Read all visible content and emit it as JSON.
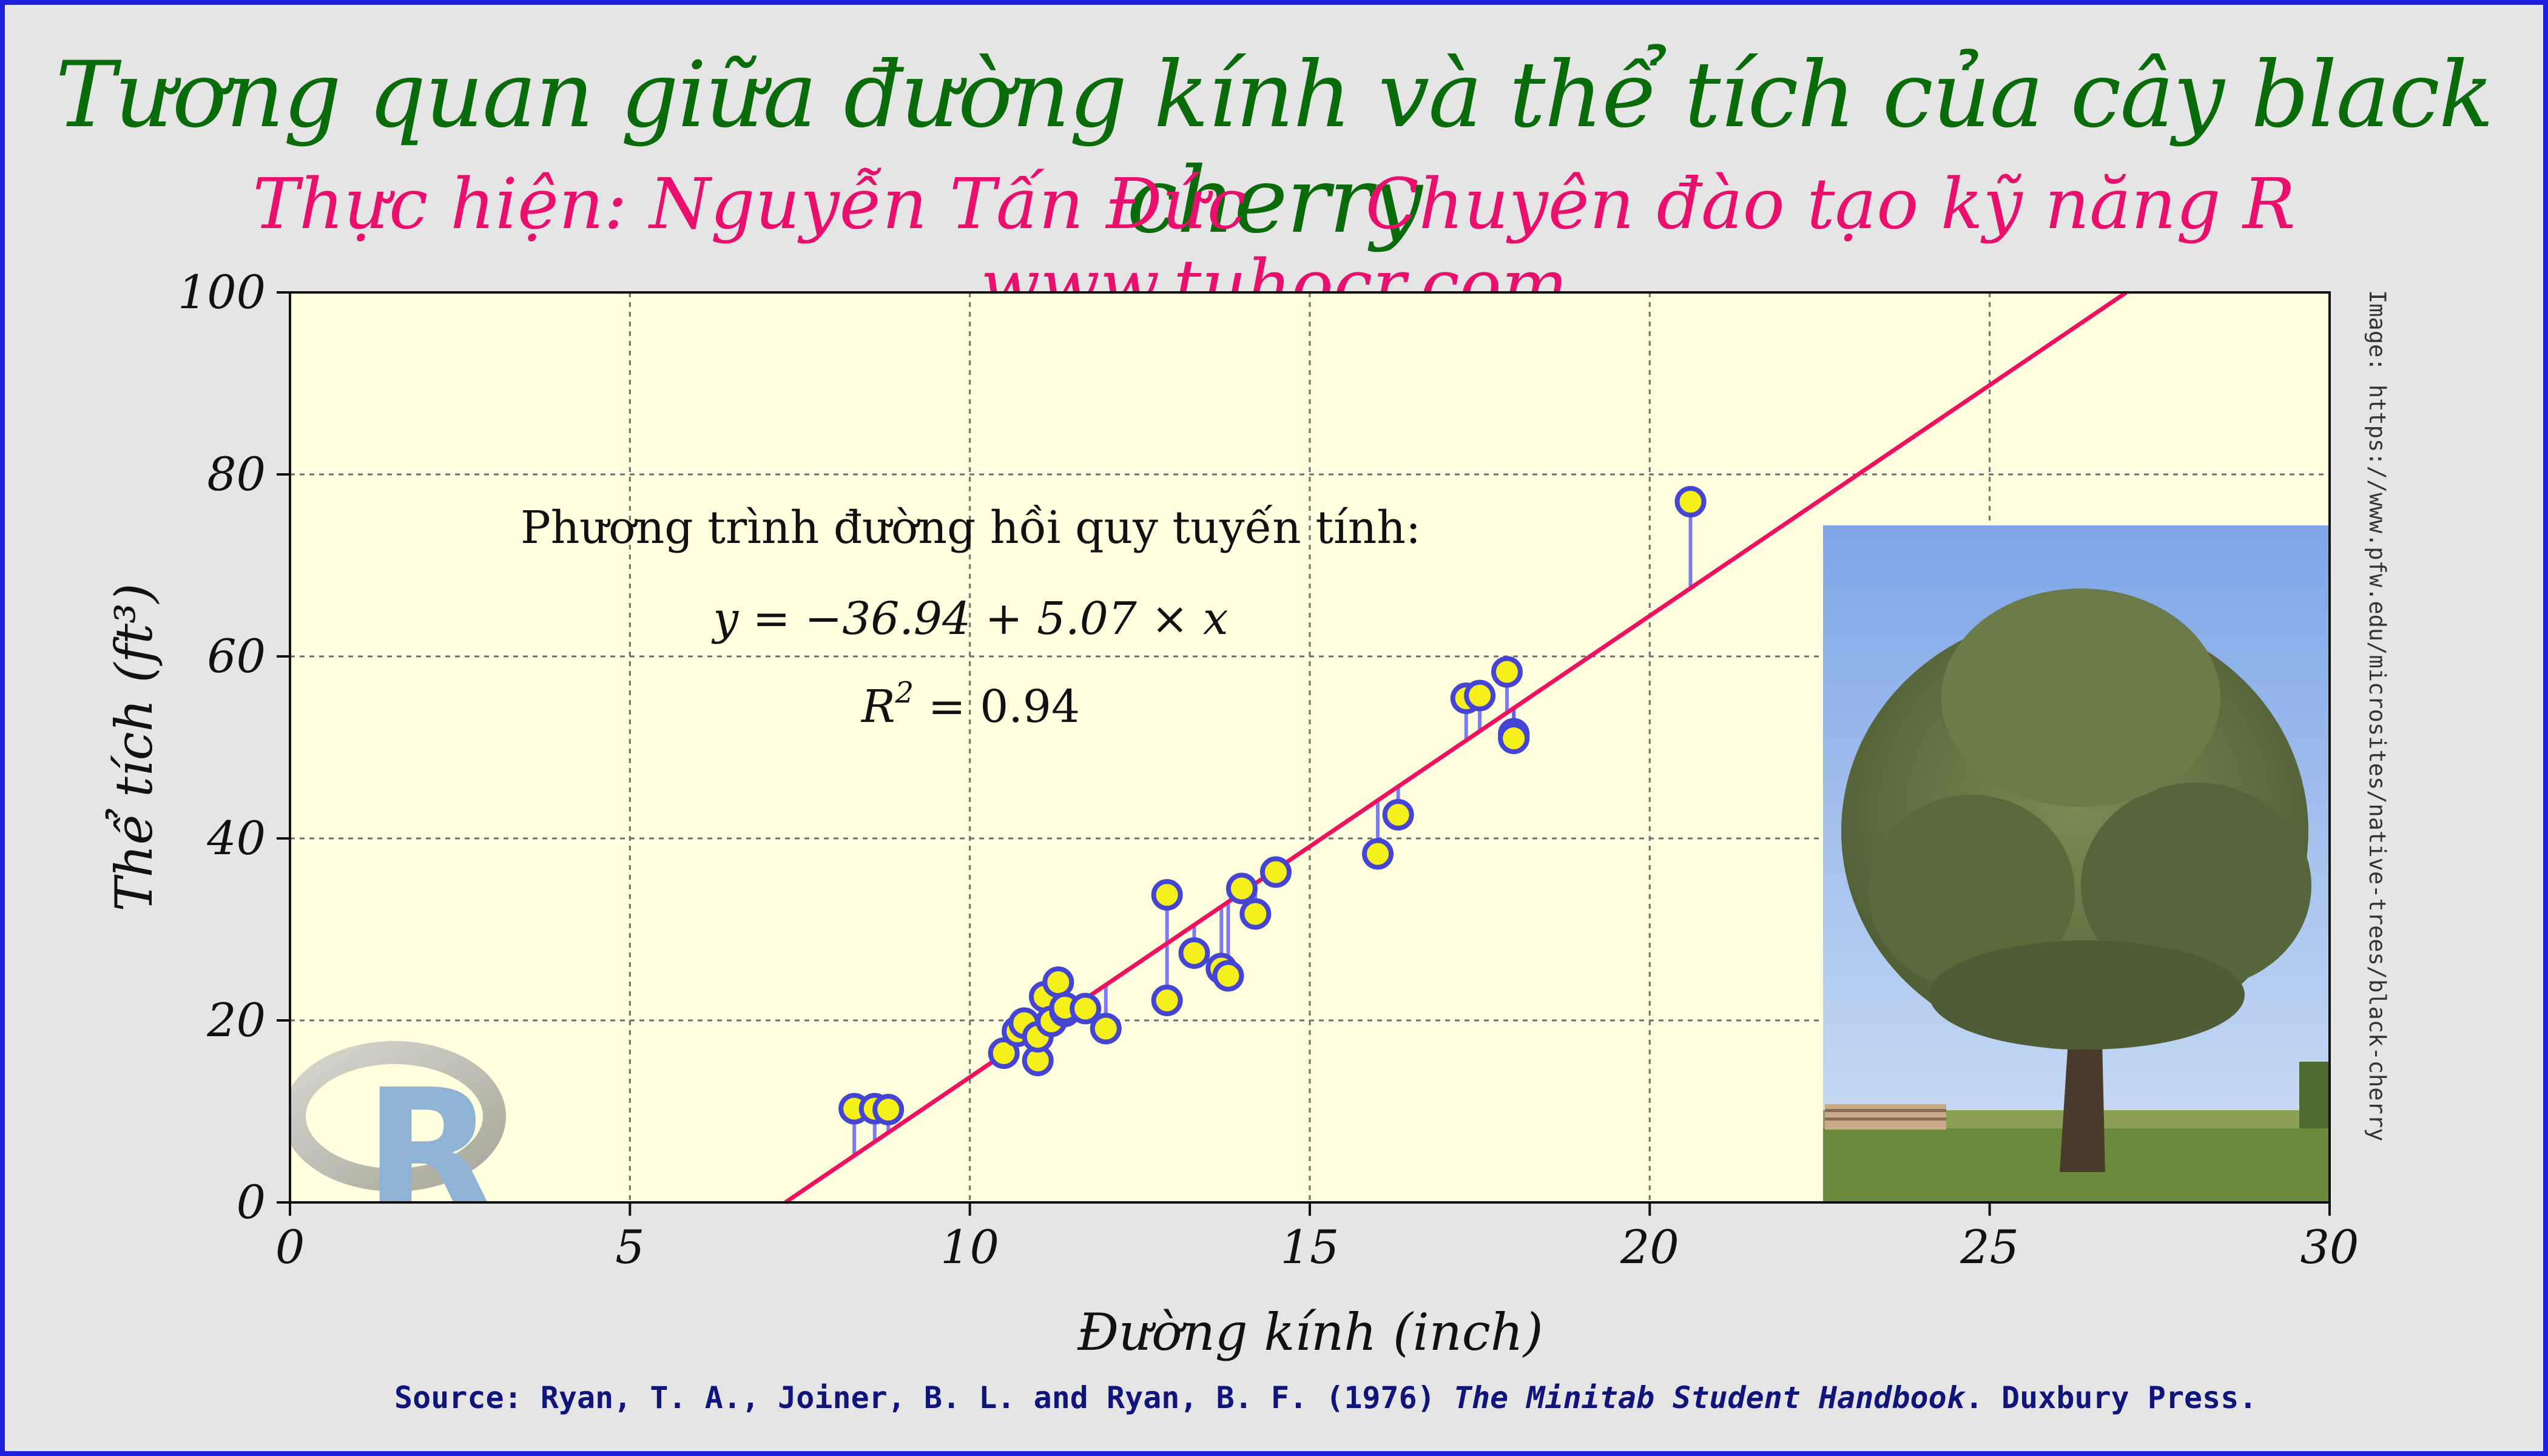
{
  "title": "Tương quan giữa đường kính và thể tích của cây black cherry",
  "subtitle": {
    "author": "Thực hiện: Nguyễn Tấn Đức",
    "tagline": "Chuyên đào tạo kỹ năng R",
    "website": "www.tuhocr.com"
  },
  "source": {
    "prefix": "Source: Ryan, T. A., Joiner, B. L. and Ryan, B. F. (1976) ",
    "book": "The Minitab Student Handbook",
    "suffix": ". Duxbury Press."
  },
  "image_credit": "Image: https://www.pfw.edu/microsites/native-trees/black-cherry",
  "colors": {
    "plot_bg": "#ffffe0",
    "point_fill": "#f5ef1a",
    "point_stroke": "#4545d4",
    "residual": "#5a5aff",
    "regression_line": "#f01060"
  },
  "icons": [
    "r-logo-icon",
    "tree-photo"
  ],
  "chart_data": {
    "type": "scatter",
    "title": "Tương quan giữa đường kính và thể tích của cây black cherry",
    "xlabel": "Đường kính (inch)",
    "ylabel": "Thể tích (ft³)",
    "xlim": [
      0,
      30
    ],
    "ylim": [
      0,
      100
    ],
    "xticks": [
      "0",
      "5",
      "10",
      "15",
      "20",
      "25",
      "30"
    ],
    "yticks": [
      "0",
      "20",
      "40",
      "60",
      "80",
      "100"
    ],
    "grid": true,
    "regression": {
      "intercept": -36.94,
      "slope": 5.07
    },
    "annotation": {
      "heading": "Phương trình đường hồi quy tuyến tính:",
      "equation": "y = −36.94 + 5.07 × x",
      "r2_label": "R",
      "r2_exp": "2",
      "r2_value": " = 0.94"
    },
    "points": [
      {
        "x": 8.3,
        "y": 10.3
      },
      {
        "x": 8.6,
        "y": 10.3
      },
      {
        "x": 8.8,
        "y": 10.2
      },
      {
        "x": 10.5,
        "y": 16.4
      },
      {
        "x": 10.7,
        "y": 18.8
      },
      {
        "x": 10.8,
        "y": 19.7
      },
      {
        "x": 11.0,
        "y": 15.6
      },
      {
        "x": 11.0,
        "y": 18.2
      },
      {
        "x": 11.1,
        "y": 22.6
      },
      {
        "x": 11.2,
        "y": 19.9
      },
      {
        "x": 11.3,
        "y": 24.2
      },
      {
        "x": 11.4,
        "y": 21.0
      },
      {
        "x": 11.4,
        "y": 21.4
      },
      {
        "x": 11.7,
        "y": 21.3
      },
      {
        "x": 12.0,
        "y": 19.1
      },
      {
        "x": 12.9,
        "y": 22.2
      },
      {
        "x": 12.9,
        "y": 33.8
      },
      {
        "x": 13.3,
        "y": 27.4
      },
      {
        "x": 13.7,
        "y": 25.7
      },
      {
        "x": 13.8,
        "y": 24.9
      },
      {
        "x": 14.0,
        "y": 34.5
      },
      {
        "x": 14.2,
        "y": 31.7
      },
      {
        "x": 14.5,
        "y": 36.3
      },
      {
        "x": 16.0,
        "y": 38.3
      },
      {
        "x": 16.3,
        "y": 42.6
      },
      {
        "x": 17.3,
        "y": 55.4
      },
      {
        "x": 17.5,
        "y": 55.7
      },
      {
        "x": 17.9,
        "y": 58.3
      },
      {
        "x": 18.0,
        "y": 51.5
      },
      {
        "x": 18.0,
        "y": 51.0
      },
      {
        "x": 20.6,
        "y": 77.0
      }
    ]
  }
}
